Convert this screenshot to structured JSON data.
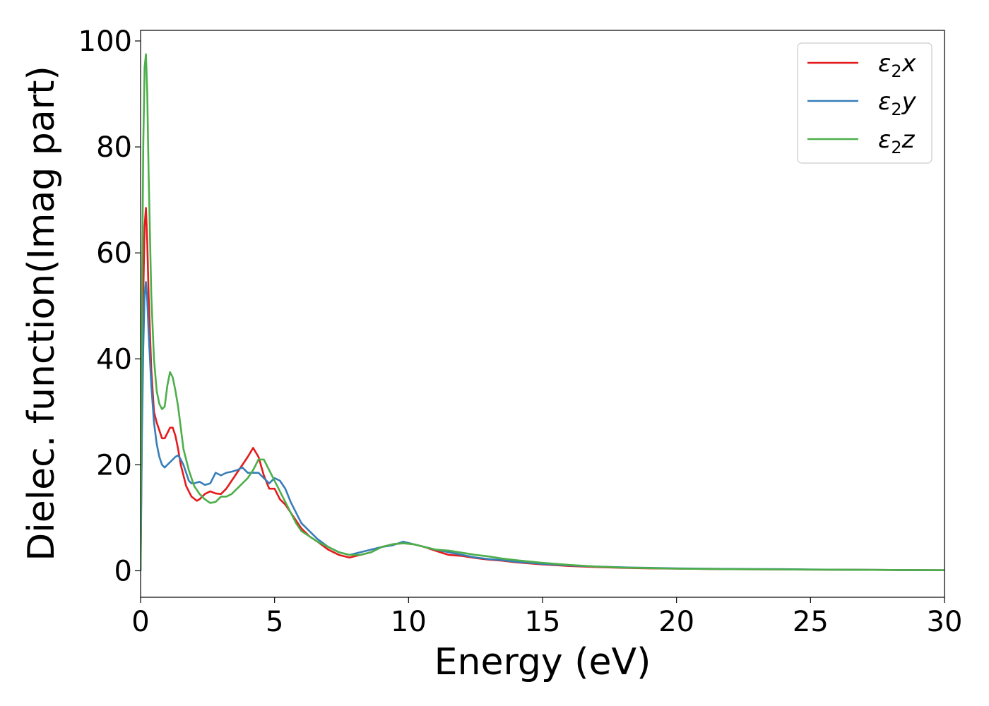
{
  "chart_data": {
    "type": "line",
    "title": "",
    "xlabel": "Energy (eV)",
    "ylabel": "Dielec. function(Imag part)",
    "xlim": [
      0,
      30
    ],
    "ylim": [
      -5,
      102
    ],
    "xticks": [
      0,
      5,
      10,
      15,
      20,
      25,
      30
    ],
    "yticks": [
      0,
      20,
      40,
      60,
      80,
      100
    ],
    "grid": false,
    "legend_position": "top-right",
    "series": [
      {
        "name": "ε2x",
        "legend_base": "ε",
        "legend_sub": "2",
        "legend_axis": "x",
        "color": "#e41a1c",
        "x": [
          0,
          0.05,
          0.1,
          0.15,
          0.2,
          0.25,
          0.3,
          0.4,
          0.5,
          0.6,
          0.7,
          0.8,
          0.9,
          1.0,
          1.1,
          1.2,
          1.3,
          1.4,
          1.5,
          1.7,
          1.9,
          2.1,
          2.2,
          2.4,
          2.6,
          2.8,
          3.0,
          3.2,
          3.4,
          3.6,
          3.8,
          4.0,
          4.2,
          4.4,
          4.6,
          4.8,
          5.0,
          5.2,
          5.4,
          5.6,
          5.8,
          6.0,
          6.3,
          6.6,
          7.0,
          7.4,
          7.8,
          8.2,
          8.6,
          9.0,
          9.4,
          9.8,
          10.2,
          10.6,
          11.0,
          11.5,
          12.0,
          12.5,
          13.0,
          13.5,
          14.0,
          15.0,
          16.0,
          17.0,
          18.0,
          19.0,
          20.0,
          22.0,
          24.0,
          26.0,
          28.0,
          30.0
        ],
        "y": [
          0,
          30,
          52,
          65,
          68.5,
          62,
          52,
          38,
          30,
          28,
          26.5,
          25,
          25,
          26,
          27,
          27,
          25.5,
          23,
          20,
          16,
          14,
          13.2,
          13.5,
          14.5,
          15,
          14.6,
          14.5,
          15.5,
          17,
          18.5,
          20,
          21.5,
          23.2,
          21.5,
          18,
          15.5,
          15.5,
          13.5,
          12.5,
          11,
          9.5,
          8,
          6.5,
          5.5,
          4,
          3,
          2.5,
          3,
          3.5,
          4.5,
          5,
          5.2,
          5,
          4.5,
          3.8,
          3,
          2.8,
          2.4,
          2.1,
          1.9,
          1.6,
          1.2,
          0.9,
          0.7,
          0.55,
          0.45,
          0.4,
          0.3,
          0.25,
          0.2,
          0.15,
          0.1
        ]
      },
      {
        "name": "ε2y",
        "legend_base": "ε",
        "legend_sub": "2",
        "legend_axis": "y",
        "color": "#377eb8",
        "x": [
          0,
          0.05,
          0.1,
          0.15,
          0.2,
          0.25,
          0.3,
          0.4,
          0.5,
          0.6,
          0.7,
          0.8,
          0.9,
          1.0,
          1.1,
          1.2,
          1.3,
          1.4,
          1.5,
          1.6,
          1.7,
          1.8,
          1.9,
          2.0,
          2.2,
          2.4,
          2.6,
          2.8,
          3.0,
          3.2,
          3.4,
          3.6,
          3.8,
          4.0,
          4.2,
          4.4,
          4.6,
          4.8,
          5.0,
          5.2,
          5.4,
          5.6,
          5.8,
          6.0,
          6.3,
          6.6,
          7.0,
          7.4,
          7.8,
          8.2,
          8.6,
          9.0,
          9.4,
          9.8,
          10.2,
          10.6,
          11.0,
          11.5,
          12.0,
          12.5,
          13.0,
          13.5,
          14.0,
          15.0,
          16.0,
          17.0,
          18.0,
          19.0,
          20.0,
          22.0,
          24.0,
          26.0,
          28.0,
          30.0
        ],
        "y": [
          0,
          25,
          42,
          52,
          54.5,
          51,
          45,
          35,
          28,
          24,
          21.5,
          20,
          19.5,
          20,
          20.5,
          21,
          21.5,
          21.8,
          21,
          20,
          18.5,
          17,
          16.5,
          16.5,
          16.8,
          16.2,
          16.5,
          18.5,
          18,
          18.5,
          18.7,
          19,
          19.5,
          18.5,
          18.5,
          18.5,
          17.5,
          16.5,
          17.5,
          17,
          15.5,
          13,
          11,
          9,
          7.5,
          6,
          4.5,
          3.5,
          3,
          3.5,
          4,
          4.5,
          4.8,
          5.5,
          5,
          4.5,
          4,
          3.5,
          3,
          2.5,
          2.2,
          2,
          1.7,
          1.3,
          1.0,
          0.8,
          0.65,
          0.55,
          0.45,
          0.35,
          0.3,
          0.2,
          0.15,
          0.1
        ]
      },
      {
        "name": "ε2z",
        "legend_base": "ε",
        "legend_sub": "2",
        "legend_axis": "z",
        "color": "#4daf4a",
        "x": [
          0,
          0.05,
          0.1,
          0.15,
          0.2,
          0.25,
          0.3,
          0.4,
          0.5,
          0.6,
          0.7,
          0.8,
          0.9,
          1.0,
          1.1,
          1.2,
          1.3,
          1.4,
          1.5,
          1.6,
          1.8,
          2.0,
          2.2,
          2.4,
          2.6,
          2.8,
          3.0,
          3.2,
          3.4,
          3.6,
          3.8,
          4.0,
          4.2,
          4.4,
          4.6,
          4.8,
          5.0,
          5.2,
          5.4,
          5.6,
          5.8,
          6.0,
          6.3,
          6.6,
          7.0,
          7.4,
          7.8,
          8.2,
          8.6,
          9.0,
          9.4,
          9.8,
          10.2,
          10.6,
          11.0,
          11.5,
          12.0,
          12.5,
          13.0,
          13.5,
          14.0,
          15.0,
          16.0,
          17.0,
          18.0,
          19.0,
          20.0,
          22.0,
          24.0,
          26.0,
          28.0,
          30.0
        ],
        "y": [
          0,
          50,
          80,
          95,
          97.5,
          90,
          75,
          52,
          40,
          34,
          31.5,
          30.5,
          31,
          35,
          37.5,
          36.5,
          34,
          31,
          27,
          23,
          19,
          16,
          14.5,
          13.5,
          12.8,
          13,
          14,
          14,
          14.5,
          15.5,
          16.5,
          17.5,
          19,
          21,
          21,
          19,
          17,
          15,
          13,
          11,
          9,
          7.5,
          6.5,
          5.5,
          4.5,
          3.5,
          3,
          3,
          3.5,
          4.5,
          5,
          5.2,
          5,
          4.5,
          4,
          3.8,
          3.4,
          3,
          2.7,
          2.3,
          2,
          1.5,
          1.1,
          0.8,
          0.6,
          0.5,
          0.4,
          0.3,
          0.25,
          0.2,
          0.15,
          0.1
        ]
      }
    ]
  }
}
